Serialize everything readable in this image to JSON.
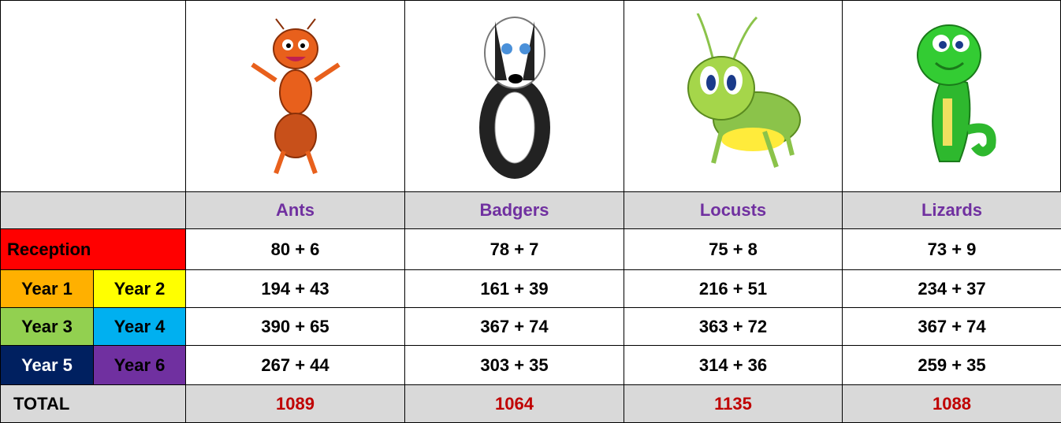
{
  "table": {
    "headers": [
      "Ants",
      "Badgers",
      "Locusts",
      "Lizards"
    ],
    "rows": [
      {
        "labels": [
          "Reception"
        ],
        "colors": [
          "#ff0000"
        ],
        "cells": [
          "80 + 6",
          "78 + 7",
          "75 + 8",
          "73 + 9"
        ]
      },
      {
        "labels": [
          "Year 1",
          "Year 2"
        ],
        "colors": [
          "#ffb000",
          "#ffff00"
        ],
        "cells": [
          "194 + 43",
          "161 + 39",
          "216 + 51",
          "234 + 37"
        ]
      },
      {
        "labels": [
          "Year 3",
          "Year 4"
        ],
        "colors": [
          "#92d050",
          "#00b0f0"
        ],
        "cells": [
          "390 + 65",
          "367 + 74",
          "363 + 72",
          "367 + 74"
        ]
      },
      {
        "labels": [
          "Year 5",
          "Year 6"
        ],
        "colors": [
          "#002060",
          "#7030a0"
        ],
        "cells": [
          "267 + 44",
          "303 + 35",
          "314 + 36",
          "259 + 35"
        ]
      }
    ],
    "total": {
      "label": "TOTAL",
      "values": [
        1089,
        1064,
        1135,
        1088
      ]
    }
  }
}
